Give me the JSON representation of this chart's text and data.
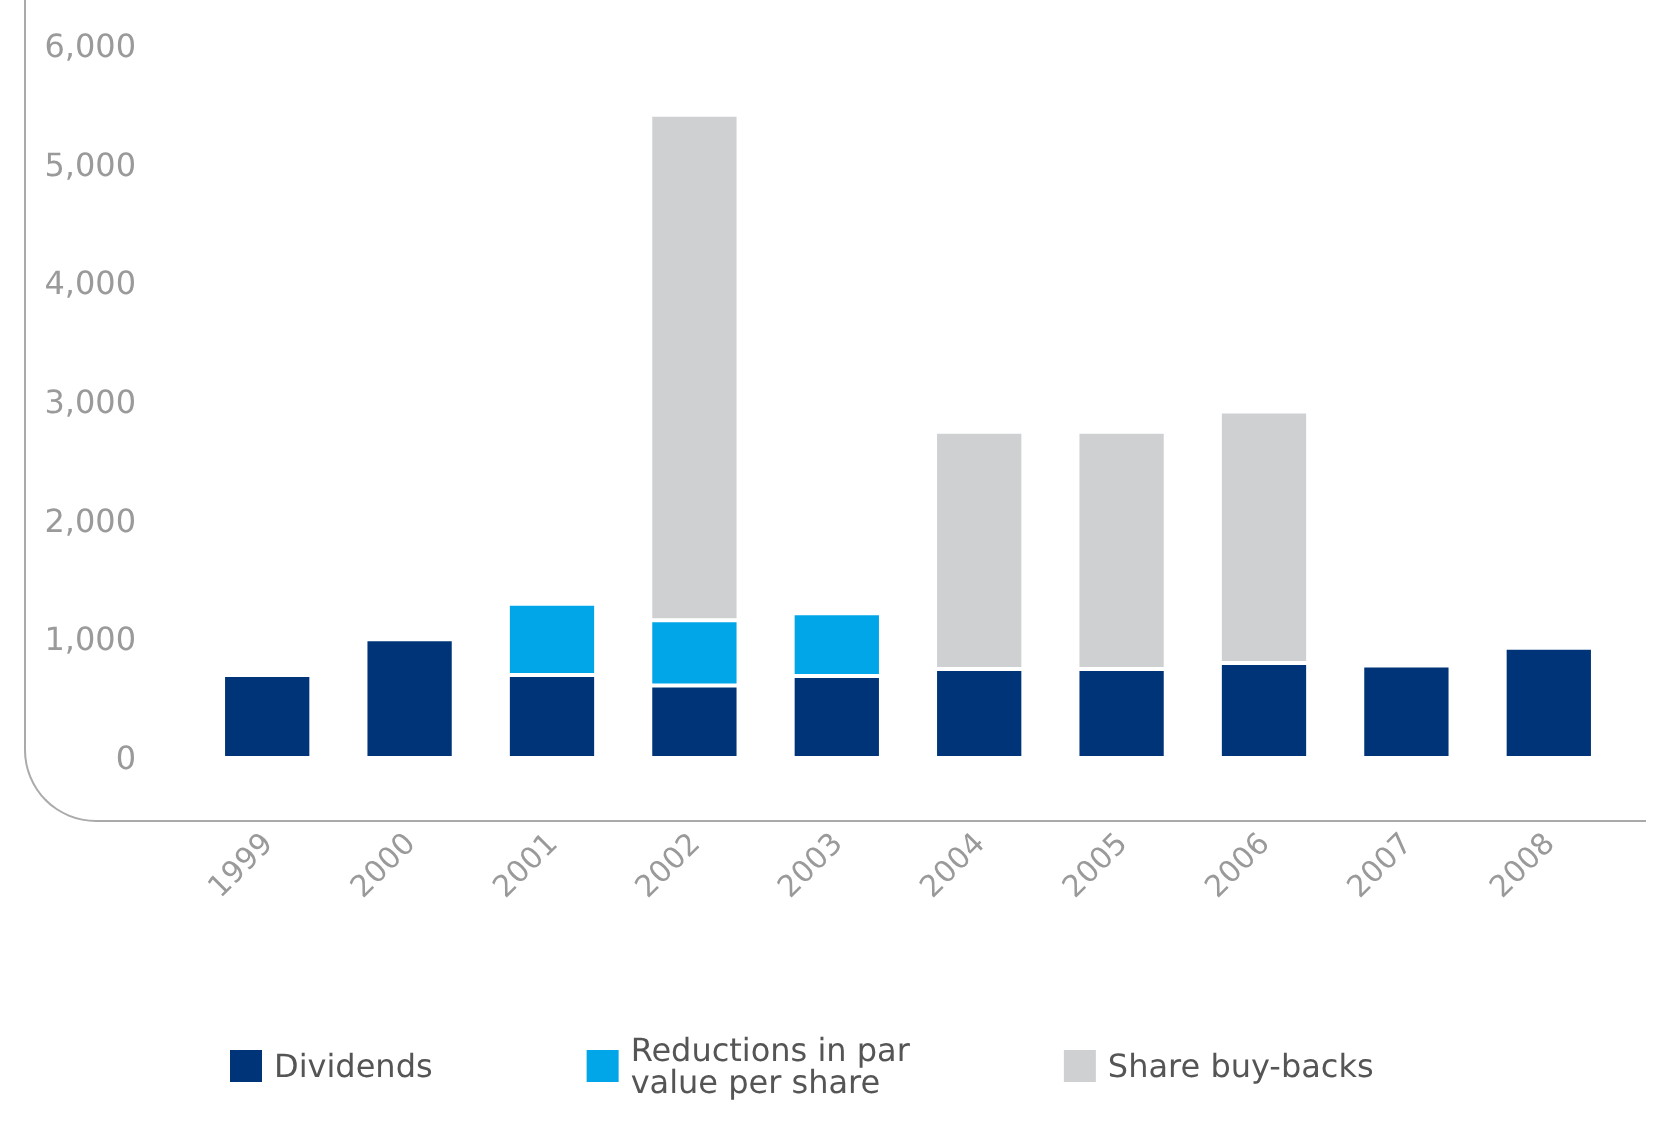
{
  "chart_data": {
    "type": "bar",
    "stacked": true,
    "categories": [
      "1999",
      "2000",
      "2001",
      "2002",
      "2003",
      "2004",
      "2005",
      "2006",
      "2007",
      "2008"
    ],
    "series": [
      {
        "name": "Dividends",
        "color": "#003478",
        "values": [
          700,
          1000,
          700,
          610,
          690,
          750,
          750,
          800,
          780,
          930
        ]
      },
      {
        "name": "Reductions in par value per share",
        "color": "#00a6e8",
        "values": [
          null,
          null,
          600,
          550,
          530,
          null,
          null,
          null,
          null,
          null
        ]
      },
      {
        "name": "Share buy-backs",
        "color": "#cfd0d2",
        "values": [
          null,
          null,
          null,
          4260,
          null,
          2000,
          2000,
          2120,
          null,
          null
        ]
      }
    ],
    "ylim": [
      0,
      6000
    ],
    "yticks": [
      0,
      {
        "value": 1000,
        "label": "1,000"
      },
      {
        "value": 2000,
        "label": "2,000"
      },
      {
        "value": 3000,
        "label": "3,000"
      },
      {
        "value": 4000,
        "label": "4,000"
      },
      {
        "value": 5000,
        "label": "5,000"
      },
      {
        "value": 6000,
        "label": "6,000"
      }
    ],
    "grid": false,
    "legend": "bottom"
  }
}
